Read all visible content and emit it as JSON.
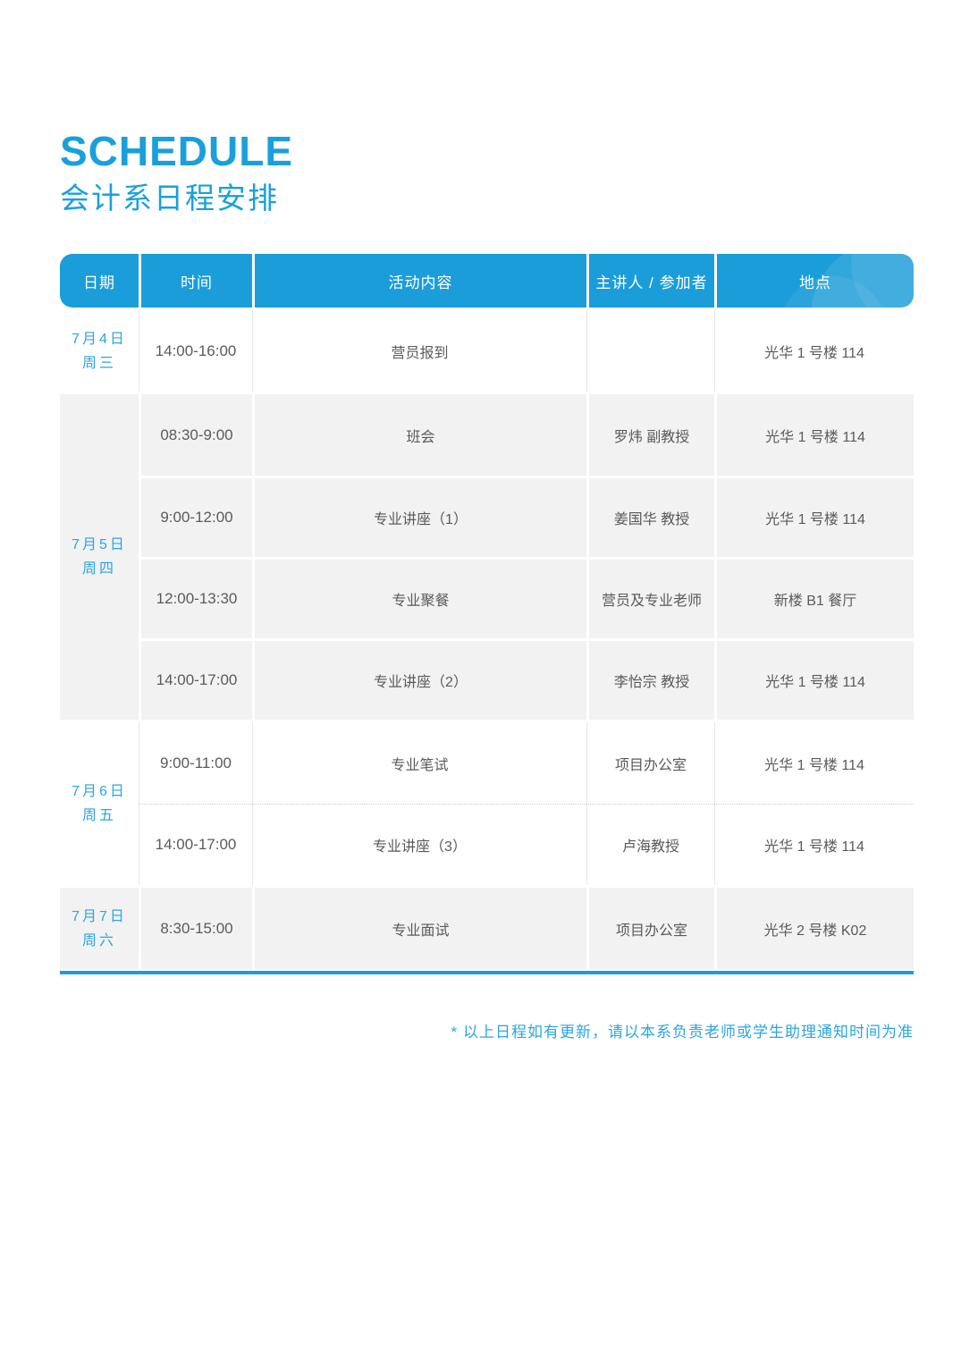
{
  "page": {
    "title": "SCHEDULE",
    "subtitle": "会计系日程安排",
    "footnote": "* 以上日程如有更新，请以本系负责老师或学生助理通知时间为准",
    "accent_color": "#1b9dd9",
    "light_accent_color": "#2ba5e0",
    "body_text_color": "#595a5c",
    "block_gray_color": "#f2f2f2"
  },
  "table": {
    "headers": [
      "日期",
      "时间",
      "活动内容",
      "主讲人 / 参加者",
      "地点"
    ],
    "blocks": [
      {
        "date": "7月4日",
        "weekday": "周三",
        "shade": "white",
        "rows": [
          {
            "time": "14:00-16:00",
            "activity": "营员报到",
            "speaker": "",
            "location": "光华 1 号楼 114"
          }
        ]
      },
      {
        "date": "7月5日",
        "weekday": "周四",
        "shade": "gray",
        "rows": [
          {
            "time": "08:30-9:00",
            "activity": "班会",
            "speaker": "罗炜 副教授",
            "location": "光华 1 号楼 114"
          },
          {
            "time": "9:00-12:00",
            "activity": "专业讲座（1）",
            "speaker": "姜国华 教授",
            "location": "光华 1 号楼 114"
          },
          {
            "time": "12:00-13:30",
            "activity": "专业聚餐",
            "speaker": "营员及专业老师",
            "location": "新楼 B1 餐厅"
          },
          {
            "time": "14:00-17:00",
            "activity": "专业讲座（2）",
            "speaker": "李怡宗  教授",
            "location": "光华 1 号楼 114"
          }
        ]
      },
      {
        "date": "7月6日",
        "weekday": "周五",
        "shade": "white",
        "rows": [
          {
            "time": "9:00-11:00",
            "activity": "专业笔试",
            "speaker": "项目办公室",
            "location": "光华 1 号楼 114"
          },
          {
            "time": "14:00-17:00",
            "activity": "专业讲座（3）",
            "speaker": "卢海教授",
            "location": "光华 1 号楼 114"
          }
        ]
      },
      {
        "date": "7月7日",
        "weekday": "周六",
        "shade": "gray",
        "rows": [
          {
            "time": "8:30-15:00",
            "activity": "专业面试",
            "speaker": "项目办公室",
            "location": "光华 2 号楼 K02"
          }
        ]
      }
    ]
  }
}
